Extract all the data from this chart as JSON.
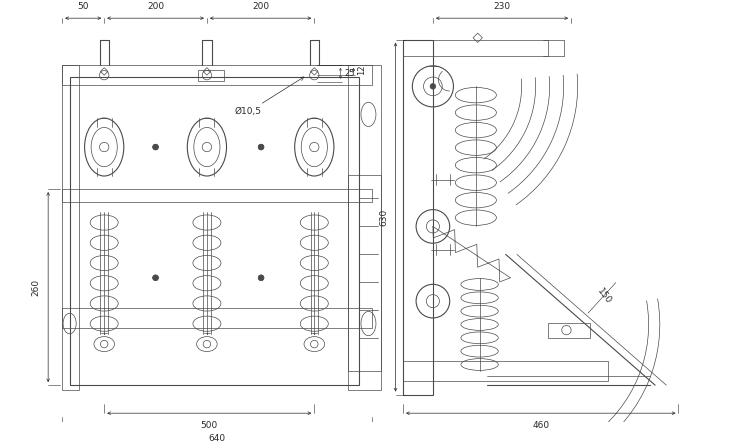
{
  "bg_color": "#ffffff",
  "line_color": "#4a4a4a",
  "dim_color": "#2a2a2a",
  "lw_thin": 0.5,
  "lw_med": 0.8,
  "lw_thick": 1.0,
  "font_size": 6.5
}
